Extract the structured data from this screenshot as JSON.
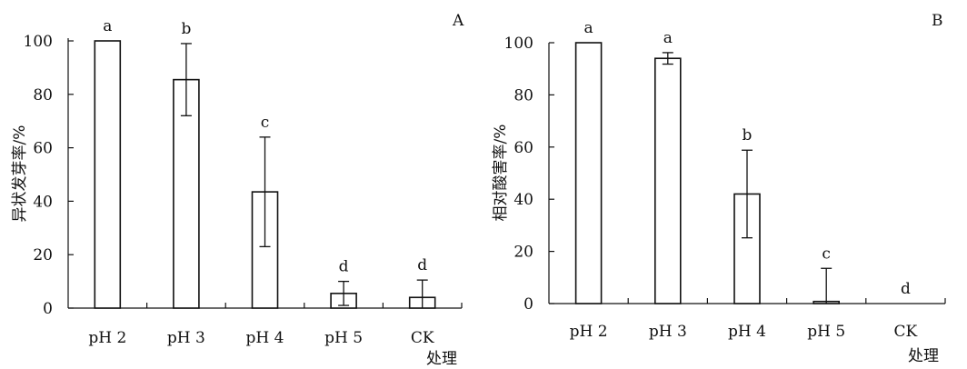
{
  "chart_data": [
    {
      "type": "bar",
      "panel_label": "A",
      "categories": [
        "pH 2",
        "pH 3",
        "pH 4",
        "pH 5",
        "CK"
      ],
      "values": [
        100,
        85.5,
        43.5,
        5.5,
        4
      ],
      "error": [
        0,
        13.5,
        20.5,
        4.5,
        6.5
      ],
      "significance": [
        "a",
        "b",
        "c",
        "d",
        "d"
      ],
      "ylabel": "异状发芽率/%",
      "xlabel": "处理",
      "ylim": [
        0,
        100
      ],
      "yticks": [
        "0",
        "20",
        "40",
        "60",
        "80",
        "100"
      ],
      "grid": false
    },
    {
      "type": "bar",
      "panel_label": "B",
      "categories": [
        "pH 2",
        "pH 3",
        "pH 4",
        "pH 5",
        "CK"
      ],
      "values": [
        100,
        94,
        42,
        0.8,
        0
      ],
      "error": [
        0,
        2.2,
        16.8,
        12.7,
        0
      ],
      "significance": [
        "a",
        "a",
        "b",
        "c",
        "d"
      ],
      "ylabel": "相对酸害率/%",
      "xlabel": "处理",
      "ylim": [
        0,
        100
      ],
      "yticks": [
        "0",
        "20",
        "40",
        "60",
        "80",
        "100"
      ],
      "grid": false
    }
  ]
}
